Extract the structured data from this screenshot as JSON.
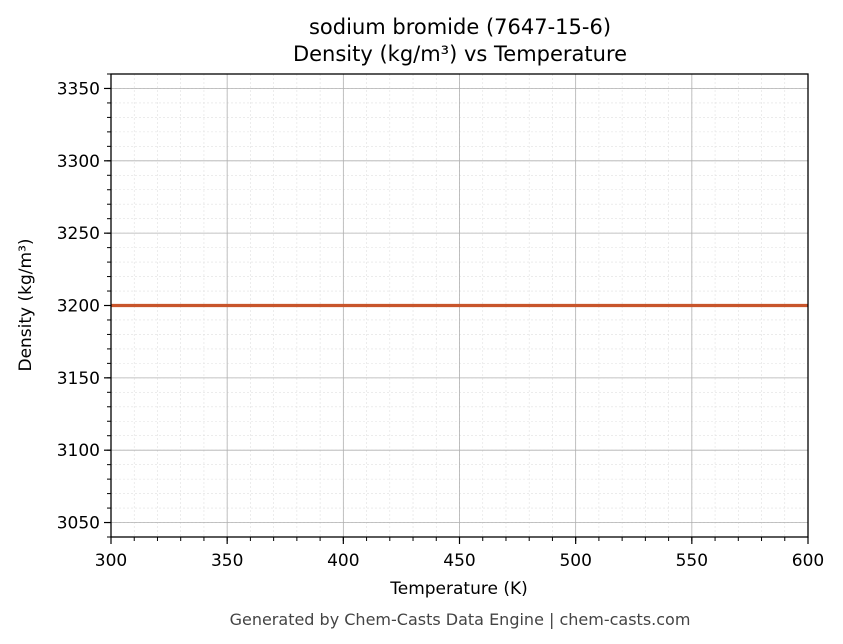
{
  "chart_data": {
    "type": "line",
    "title": "sodium bromide (7647-15-6)",
    "subtitle": "Density (kg/m³) vs Temperature",
    "xlabel": "Temperature (K)",
    "ylabel": "Density (kg/m³)",
    "xlim": [
      300,
      600
    ],
    "ylim": [
      3040,
      3360
    ],
    "xticks": [
      300,
      350,
      400,
      450,
      500,
      550,
      600
    ],
    "yticks": [
      3050,
      3100,
      3150,
      3200,
      3250,
      3300,
      3350
    ],
    "grid": true,
    "series": [
      {
        "x": [
          300,
          350,
          400,
          450,
          500,
          550,
          600
        ],
        "y": [
          3200,
          3200,
          3200,
          3200,
          3200,
          3200,
          3200
        ]
      }
    ]
  },
  "colors": {
    "line": "#c8552b",
    "grid_major": "#b0b0b0",
    "grid_minor": "#e0e0e0",
    "footer": "#444444"
  },
  "footer": "Generated by Chem-Casts Data Engine | chem-casts.com"
}
